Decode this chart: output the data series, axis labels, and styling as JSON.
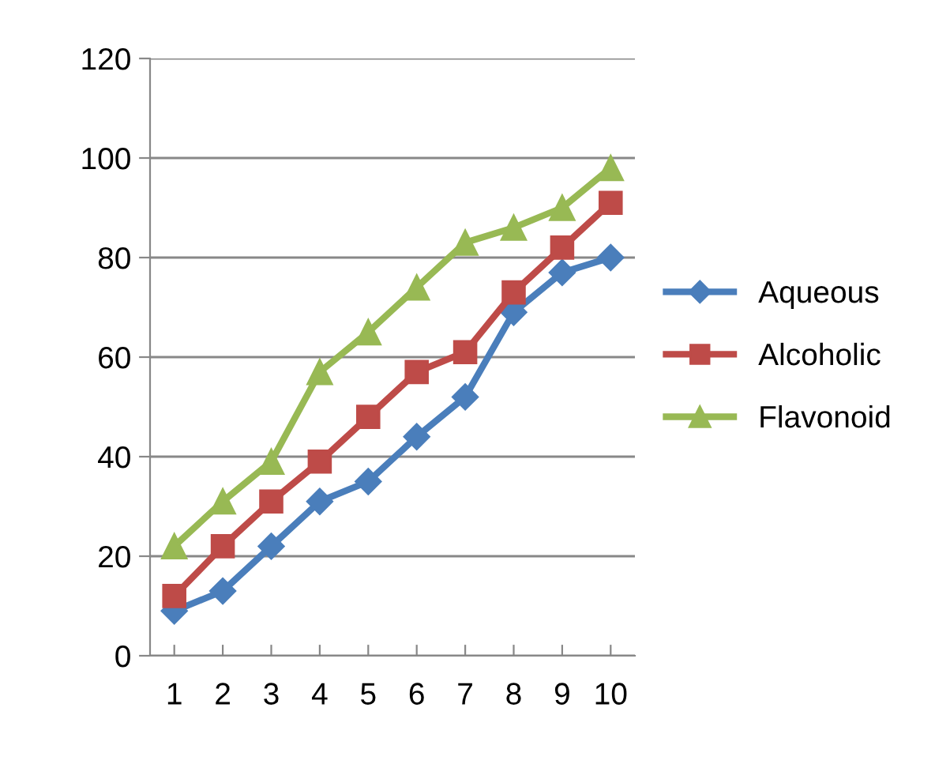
{
  "chart_data": {
    "type": "line",
    "categories": [
      "1",
      "2",
      "3",
      "4",
      "5",
      "6",
      "7",
      "8",
      "9",
      "10"
    ],
    "series": [
      {
        "name": "Aqueous",
        "color": "#4a7ebb",
        "marker": "diamond",
        "values": [
          9,
          13,
          22,
          31,
          35,
          44,
          52,
          69,
          77,
          80
        ]
      },
      {
        "name": "Alcoholic",
        "color": "#be4b48",
        "marker": "square",
        "values": [
          12,
          22,
          31,
          39,
          48,
          57,
          61,
          73,
          82,
          91
        ]
      },
      {
        "name": "Flavonoid",
        "color": "#98b954",
        "marker": "triangle",
        "values": [
          22,
          31,
          39,
          57,
          65,
          74,
          83,
          86,
          90,
          98
        ]
      }
    ],
    "ylim": [
      0,
      120
    ],
    "yticks": [
      0,
      20,
      40,
      60,
      80,
      100,
      120
    ],
    "grid": "y",
    "legend": "right",
    "line_style": "solid"
  }
}
